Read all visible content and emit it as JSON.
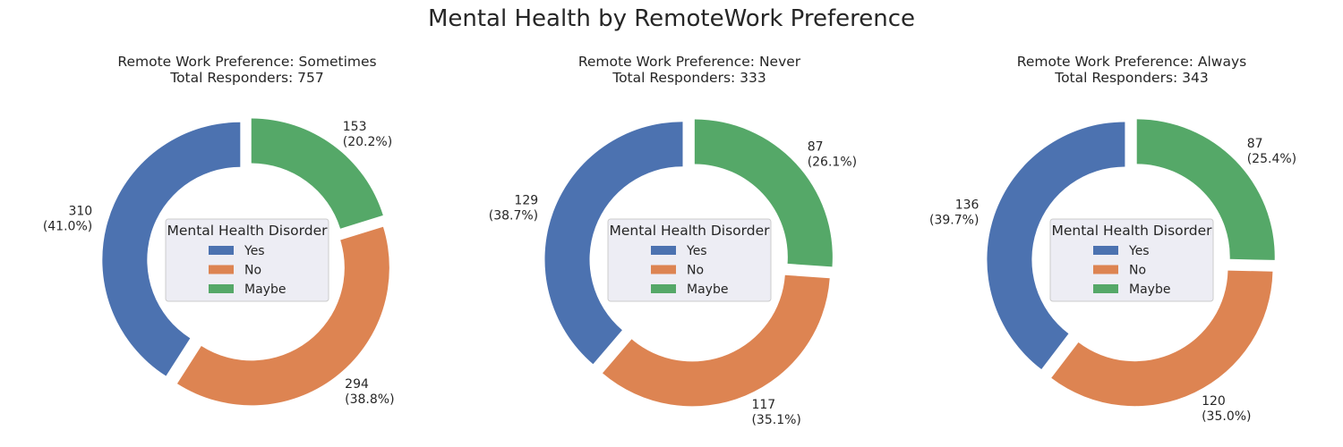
{
  "figure": {
    "title": "Mental Health by RemoteWork Preference"
  },
  "legend": {
    "title": "Mental Health Disorder"
  },
  "chart_data": [
    {
      "type": "pie",
      "title": "Remote Work Preference: Sometimes",
      "subtitle": "Total Responders: 757",
      "categories": [
        "Yes",
        "No",
        "Maybe"
      ],
      "values": [
        310,
        294,
        153
      ],
      "percent_labels": [
        "(41.0%)",
        "(38.8%)",
        "(20.2%)"
      ],
      "colors": [
        "#4c72b0",
        "#dd8452",
        "#55a868"
      ],
      "legend": {
        "title": "Mental Health Disorder",
        "placement": "center"
      }
    },
    {
      "type": "pie",
      "title": "Remote Work Preference: Never",
      "subtitle": "Total Responders: 333",
      "categories": [
        "Yes",
        "No",
        "Maybe"
      ],
      "values": [
        129,
        117,
        87
      ],
      "percent_labels": [
        "(38.7%)",
        "(35.1%)",
        "(26.1%)"
      ],
      "colors": [
        "#4c72b0",
        "#dd8452",
        "#55a868"
      ],
      "legend": {
        "title": "Mental Health Disorder",
        "placement": "center"
      }
    },
    {
      "type": "pie",
      "title": "Remote Work Preference: Always",
      "subtitle": "Total Responders: 343",
      "categories": [
        "Yes",
        "No",
        "Maybe"
      ],
      "values": [
        136,
        120,
        87
      ],
      "percent_labels": [
        "(39.7%)",
        "(35.0%)",
        "(25.4%)"
      ],
      "colors": [
        "#4c72b0",
        "#dd8452",
        "#55a868"
      ],
      "legend": {
        "title": "Mental Health Disorder",
        "placement": "center"
      }
    }
  ]
}
